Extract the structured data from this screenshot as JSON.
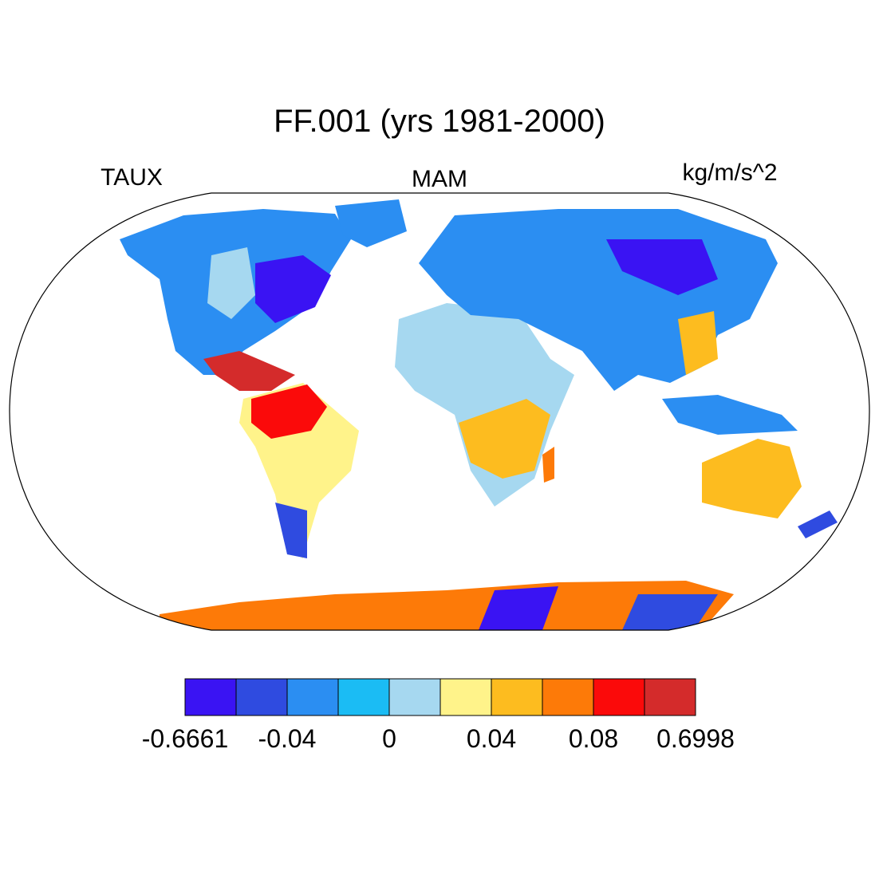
{
  "header": {
    "title": "FF.001 (yrs 1981-2000)",
    "left": "TAUX",
    "center": "MAM",
    "right": "kg/m/s^2"
  },
  "colorbar": {
    "colors": [
      "#3a13f3",
      "#2f4be0",
      "#2b8ef2",
      "#1bbcf4",
      "#a6d8f0",
      "#fff38a",
      "#fdbc1f",
      "#fd7a08",
      "#fb0a0a",
      "#d42b2b"
    ],
    "levels": [
      -0.6661,
      null,
      -0.04,
      null,
      0,
      null,
      0.04,
      null,
      0.08,
      null,
      0.6998
    ]
  }
}
